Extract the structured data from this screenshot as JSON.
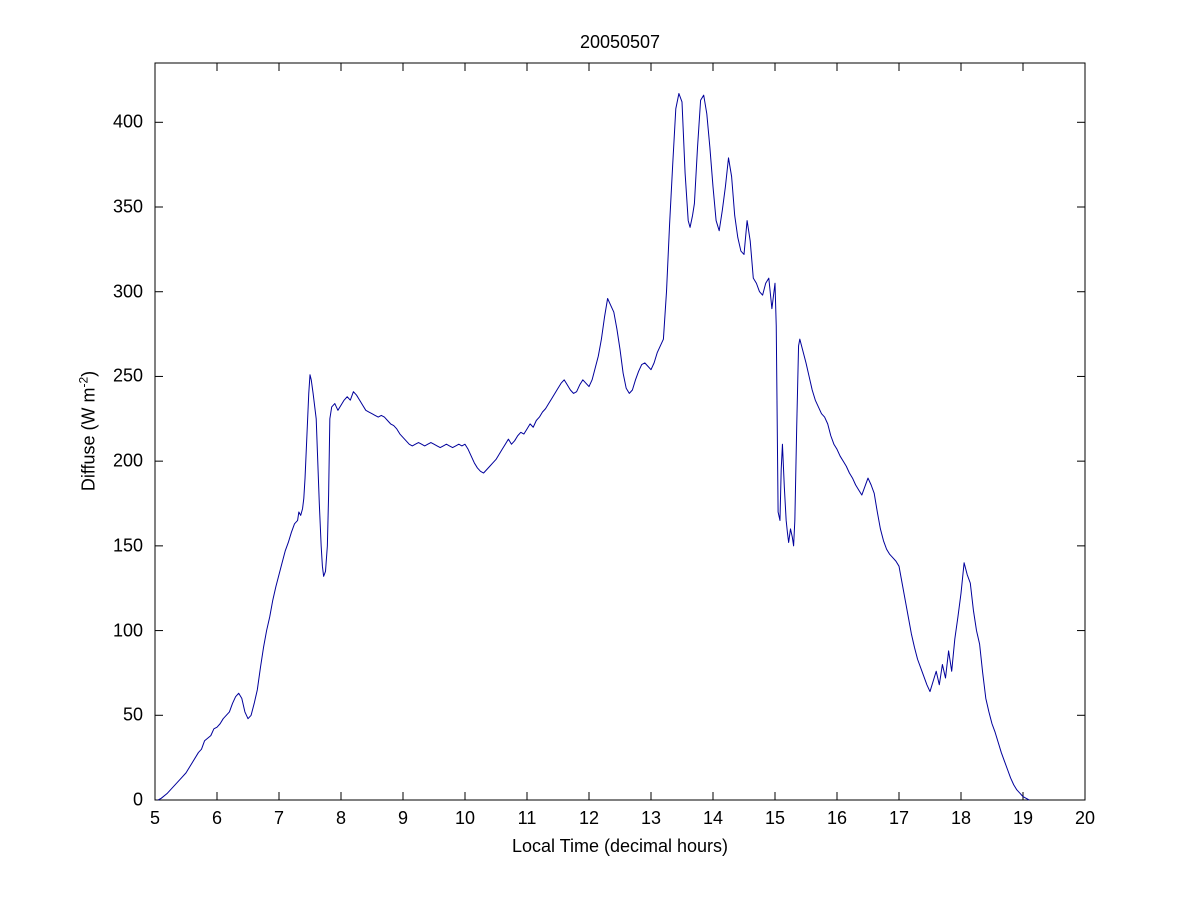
{
  "chart_data": {
    "type": "line",
    "title": "20050507",
    "xlabel": "Local Time (decimal hours)",
    "ylabel": "Diffuse (W m-2)",
    "ylabel_parts": {
      "prefix": "Diffuse (W m",
      "sup": "-2",
      "suffix": ")"
    },
    "xlim": [
      5,
      20
    ],
    "ylim": [
      0,
      435
    ],
    "xticks": [
      5,
      6,
      7,
      8,
      9,
      10,
      11,
      12,
      13,
      14,
      15,
      16,
      17,
      18,
      19,
      20
    ],
    "yticks": [
      0,
      50,
      100,
      150,
      200,
      250,
      300,
      350,
      400
    ],
    "grid": false,
    "legend_position": "none",
    "line_color": "#00009b",
    "axis_color": "#000000",
    "background_color": "#ffffff",
    "series": [
      {
        "name": "diffuse",
        "points": [
          [
            5.05,
            0
          ],
          [
            5.1,
            1
          ],
          [
            5.2,
            4
          ],
          [
            5.3,
            8
          ],
          [
            5.4,
            12
          ],
          [
            5.5,
            16
          ],
          [
            5.6,
            22
          ],
          [
            5.7,
            28
          ],
          [
            5.75,
            30
          ],
          [
            5.8,
            35
          ],
          [
            5.9,
            38
          ],
          [
            5.95,
            42
          ],
          [
            6.0,
            43
          ],
          [
            6.05,
            45
          ],
          [
            6.1,
            48
          ],
          [
            6.15,
            50
          ],
          [
            6.2,
            52
          ],
          [
            6.25,
            57
          ],
          [
            6.3,
            61
          ],
          [
            6.35,
            63
          ],
          [
            6.4,
            60
          ],
          [
            6.45,
            52
          ],
          [
            6.5,
            48
          ],
          [
            6.55,
            50
          ],
          [
            6.6,
            57
          ],
          [
            6.65,
            65
          ],
          [
            6.7,
            78
          ],
          [
            6.75,
            90
          ],
          [
            6.8,
            100
          ],
          [
            6.85,
            108
          ],
          [
            6.9,
            118
          ],
          [
            6.95,
            126
          ],
          [
            7.0,
            133
          ],
          [
            7.05,
            140
          ],
          [
            7.1,
            147
          ],
          [
            7.15,
            152
          ],
          [
            7.2,
            158
          ],
          [
            7.25,
            163
          ],
          [
            7.3,
            165
          ],
          [
            7.32,
            170
          ],
          [
            7.35,
            168
          ],
          [
            7.38,
            172
          ],
          [
            7.4,
            178
          ],
          [
            7.42,
            190
          ],
          [
            7.45,
            215
          ],
          [
            7.48,
            240
          ],
          [
            7.5,
            251
          ],
          [
            7.52,
            248
          ],
          [
            7.55,
            240
          ],
          [
            7.6,
            225
          ],
          [
            7.62,
            205
          ],
          [
            7.65,
            175
          ],
          [
            7.68,
            150
          ],
          [
            7.7,
            138
          ],
          [
            7.72,
            132
          ],
          [
            7.75,
            135
          ],
          [
            7.78,
            150
          ],
          [
            7.8,
            180
          ],
          [
            7.82,
            225
          ],
          [
            7.85,
            232
          ],
          [
            7.9,
            234
          ],
          [
            7.95,
            230
          ],
          [
            8.0,
            233
          ],
          [
            8.05,
            236
          ],
          [
            8.1,
            238
          ],
          [
            8.15,
            236
          ],
          [
            8.2,
            241
          ],
          [
            8.25,
            239
          ],
          [
            8.3,
            236
          ],
          [
            8.35,
            233
          ],
          [
            8.4,
            230
          ],
          [
            8.45,
            229
          ],
          [
            8.5,
            228
          ],
          [
            8.55,
            227
          ],
          [
            8.6,
            226
          ],
          [
            8.65,
            227
          ],
          [
            8.7,
            226
          ],
          [
            8.75,
            224
          ],
          [
            8.8,
            222
          ],
          [
            8.85,
            221
          ],
          [
            8.9,
            219
          ],
          [
            8.95,
            216
          ],
          [
            9.0,
            214
          ],
          [
            9.05,
            212
          ],
          [
            9.1,
            210
          ],
          [
            9.15,
            209
          ],
          [
            9.2,
            210
          ],
          [
            9.25,
            211
          ],
          [
            9.3,
            210
          ],
          [
            9.35,
            209
          ],
          [
            9.4,
            210
          ],
          [
            9.45,
            211
          ],
          [
            9.5,
            210
          ],
          [
            9.55,
            209
          ],
          [
            9.6,
            208
          ],
          [
            9.65,
            209
          ],
          [
            9.7,
            210
          ],
          [
            9.75,
            209
          ],
          [
            9.8,
            208
          ],
          [
            9.85,
            209
          ],
          [
            9.9,
            210
          ],
          [
            9.95,
            209
          ],
          [
            10.0,
            210
          ],
          [
            10.05,
            207
          ],
          [
            10.1,
            203
          ],
          [
            10.15,
            199
          ],
          [
            10.2,
            196
          ],
          [
            10.25,
            194
          ],
          [
            10.3,
            193
          ],
          [
            10.35,
            195
          ],
          [
            10.4,
            197
          ],
          [
            10.45,
            199
          ],
          [
            10.5,
            201
          ],
          [
            10.55,
            204
          ],
          [
            10.6,
            207
          ],
          [
            10.65,
            210
          ],
          [
            10.7,
            213
          ],
          [
            10.75,
            210
          ],
          [
            10.8,
            212
          ],
          [
            10.85,
            215
          ],
          [
            10.9,
            217
          ],
          [
            10.95,
            216
          ],
          [
            11.0,
            219
          ],
          [
            11.05,
            222
          ],
          [
            11.1,
            220
          ],
          [
            11.15,
            224
          ],
          [
            11.2,
            226
          ],
          [
            11.25,
            229
          ],
          [
            11.3,
            231
          ],
          [
            11.35,
            234
          ],
          [
            11.4,
            237
          ],
          [
            11.45,
            240
          ],
          [
            11.5,
            243
          ],
          [
            11.55,
            246
          ],
          [
            11.6,
            248
          ],
          [
            11.65,
            245
          ],
          [
            11.7,
            242
          ],
          [
            11.75,
            240
          ],
          [
            11.8,
            241
          ],
          [
            11.85,
            245
          ],
          [
            11.9,
            248
          ],
          [
            11.95,
            246
          ],
          [
            12.0,
            244
          ],
          [
            12.05,
            248
          ],
          [
            12.1,
            255
          ],
          [
            12.15,
            262
          ],
          [
            12.2,
            272
          ],
          [
            12.25,
            285
          ],
          [
            12.3,
            296
          ],
          [
            12.35,
            292
          ],
          [
            12.4,
            288
          ],
          [
            12.45,
            278
          ],
          [
            12.5,
            266
          ],
          [
            12.55,
            252
          ],
          [
            12.6,
            243
          ],
          [
            12.65,
            240
          ],
          [
            12.7,
            242
          ],
          [
            12.75,
            248
          ],
          [
            12.8,
            253
          ],
          [
            12.85,
            257
          ],
          [
            12.9,
            258
          ],
          [
            12.95,
            256
          ],
          [
            13.0,
            254
          ],
          [
            13.05,
            258
          ],
          [
            13.1,
            264
          ],
          [
            13.15,
            268
          ],
          [
            13.2,
            272
          ],
          [
            13.25,
            300
          ],
          [
            13.3,
            340
          ],
          [
            13.35,
            375
          ],
          [
            13.4,
            408
          ],
          [
            13.45,
            417
          ],
          [
            13.5,
            412
          ],
          [
            13.55,
            370
          ],
          [
            13.6,
            342
          ],
          [
            13.63,
            338
          ],
          [
            13.67,
            345
          ],
          [
            13.7,
            352
          ],
          [
            13.75,
            385
          ],
          [
            13.8,
            413
          ],
          [
            13.85,
            416
          ],
          [
            13.9,
            405
          ],
          [
            13.95,
            385
          ],
          [
            14.0,
            362
          ],
          [
            14.05,
            342
          ],
          [
            14.1,
            336
          ],
          [
            14.15,
            348
          ],
          [
            14.2,
            362
          ],
          [
            14.25,
            379
          ],
          [
            14.3,
            368
          ],
          [
            14.35,
            345
          ],
          [
            14.4,
            332
          ],
          [
            14.45,
            324
          ],
          [
            14.5,
            322
          ],
          [
            14.55,
            342
          ],
          [
            14.6,
            330
          ],
          [
            14.65,
            308
          ],
          [
            14.7,
            305
          ],
          [
            14.75,
            300
          ],
          [
            14.8,
            298
          ],
          [
            14.85,
            305
          ],
          [
            14.9,
            308
          ],
          [
            14.95,
            290
          ],
          [
            15.0,
            305
          ],
          [
            15.02,
            280
          ],
          [
            15.05,
            170
          ],
          [
            15.08,
            165
          ],
          [
            15.1,
            195
          ],
          [
            15.12,
            210
          ],
          [
            15.15,
            185
          ],
          [
            15.18,
            165
          ],
          [
            15.2,
            158
          ],
          [
            15.22,
            152
          ],
          [
            15.25,
            160
          ],
          [
            15.28,
            155
          ],
          [
            15.3,
            150
          ],
          [
            15.32,
            165
          ],
          [
            15.35,
            220
          ],
          [
            15.38,
            268
          ],
          [
            15.4,
            272
          ],
          [
            15.45,
            265
          ],
          [
            15.5,
            258
          ],
          [
            15.55,
            250
          ],
          [
            15.6,
            242
          ],
          [
            15.65,
            236
          ],
          [
            15.7,
            232
          ],
          [
            15.75,
            228
          ],
          [
            15.8,
            226
          ],
          [
            15.85,
            222
          ],
          [
            15.9,
            215
          ],
          [
            15.95,
            210
          ],
          [
            16.0,
            207
          ],
          [
            16.05,
            203
          ],
          [
            16.1,
            200
          ],
          [
            16.15,
            197
          ],
          [
            16.2,
            193
          ],
          [
            16.25,
            190
          ],
          [
            16.3,
            186
          ],
          [
            16.35,
            183
          ],
          [
            16.4,
            180
          ],
          [
            16.45,
            185
          ],
          [
            16.5,
            190
          ],
          [
            16.55,
            186
          ],
          [
            16.6,
            181
          ],
          [
            16.65,
            170
          ],
          [
            16.7,
            160
          ],
          [
            16.75,
            153
          ],
          [
            16.8,
            148
          ],
          [
            16.85,
            145
          ],
          [
            16.9,
            143
          ],
          [
            16.95,
            141
          ],
          [
            17.0,
            138
          ],
          [
            17.05,
            128
          ],
          [
            17.1,
            118
          ],
          [
            17.15,
            108
          ],
          [
            17.2,
            98
          ],
          [
            17.25,
            90
          ],
          [
            17.3,
            83
          ],
          [
            17.35,
            78
          ],
          [
            17.4,
            73
          ],
          [
            17.45,
            68
          ],
          [
            17.5,
            64
          ],
          [
            17.55,
            70
          ],
          [
            17.6,
            76
          ],
          [
            17.65,
            68
          ],
          [
            17.7,
            80
          ],
          [
            17.75,
            72
          ],
          [
            17.8,
            88
          ],
          [
            17.85,
            76
          ],
          [
            17.9,
            95
          ],
          [
            17.95,
            108
          ],
          [
            18.0,
            122
          ],
          [
            18.05,
            140
          ],
          [
            18.1,
            133
          ],
          [
            18.15,
            128
          ],
          [
            18.2,
            112
          ],
          [
            18.25,
            100
          ],
          [
            18.3,
            92
          ],
          [
            18.35,
            75
          ],
          [
            18.4,
            60
          ],
          [
            18.45,
            52
          ],
          [
            18.5,
            45
          ],
          [
            18.55,
            40
          ],
          [
            18.6,
            34
          ],
          [
            18.65,
            28
          ],
          [
            18.7,
            23
          ],
          [
            18.75,
            18
          ],
          [
            18.8,
            13
          ],
          [
            18.85,
            9
          ],
          [
            18.9,
            6
          ],
          [
            18.95,
            4
          ],
          [
            19.0,
            2
          ],
          [
            19.05,
            1
          ],
          [
            19.1,
            0
          ]
        ]
      }
    ]
  }
}
